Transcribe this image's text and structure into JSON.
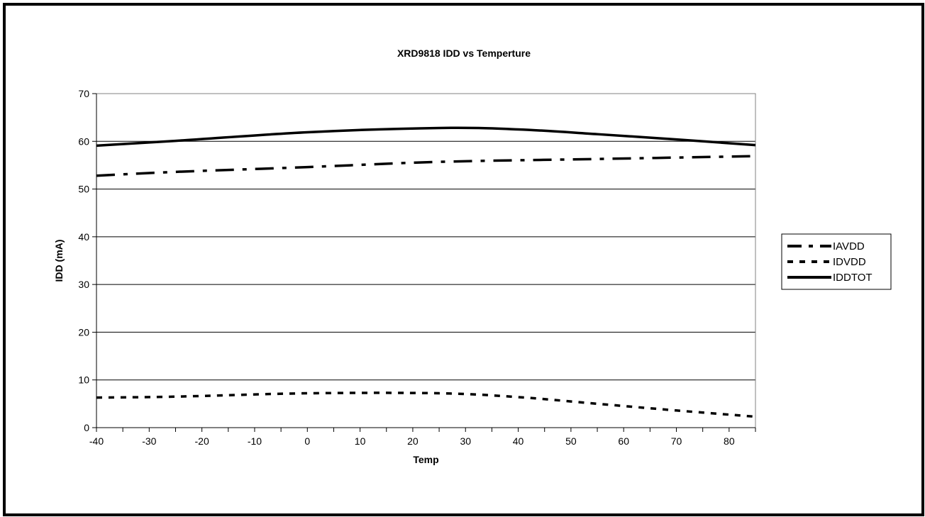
{
  "chart_data": {
    "type": "line",
    "title": "XRD9818 IDD vs Temperture",
    "xlabel": "Temp",
    "ylabel": "IDD (mA)",
    "xlim": [
      -40,
      85
    ],
    "ylim": [
      0,
      70
    ],
    "x_ticks": [
      -40,
      -30,
      -20,
      -10,
      0,
      10,
      20,
      30,
      40,
      50,
      60,
      70,
      80
    ],
    "y_ticks": [
      0,
      10,
      20,
      30,
      40,
      50,
      60,
      70
    ],
    "grid": "horizontal",
    "legend_position": "right",
    "series": [
      {
        "name": "IAVDD",
        "style": "dash-dot",
        "color": "#000000",
        "x": [
          -40,
          -25,
          0,
          25,
          55,
          85
        ],
        "y": [
          52.8,
          53.6,
          54.6,
          55.7,
          56.3,
          56.9
        ]
      },
      {
        "name": "IDVDD",
        "style": "dotted",
        "color": "#000000",
        "x": [
          -40,
          -25,
          0,
          25,
          40,
          55,
          70,
          85
        ],
        "y": [
          6.3,
          6.5,
          7.2,
          7.2,
          6.4,
          5.0,
          3.6,
          2.3
        ]
      },
      {
        "name": "IDDTOT",
        "style": "solid",
        "color": "#000000",
        "x": [
          -40,
          -25,
          0,
          25,
          40,
          55,
          70,
          85
        ],
        "y": [
          59.1,
          60.1,
          61.9,
          62.8,
          62.5,
          61.5,
          60.4,
          59.2
        ]
      }
    ]
  }
}
